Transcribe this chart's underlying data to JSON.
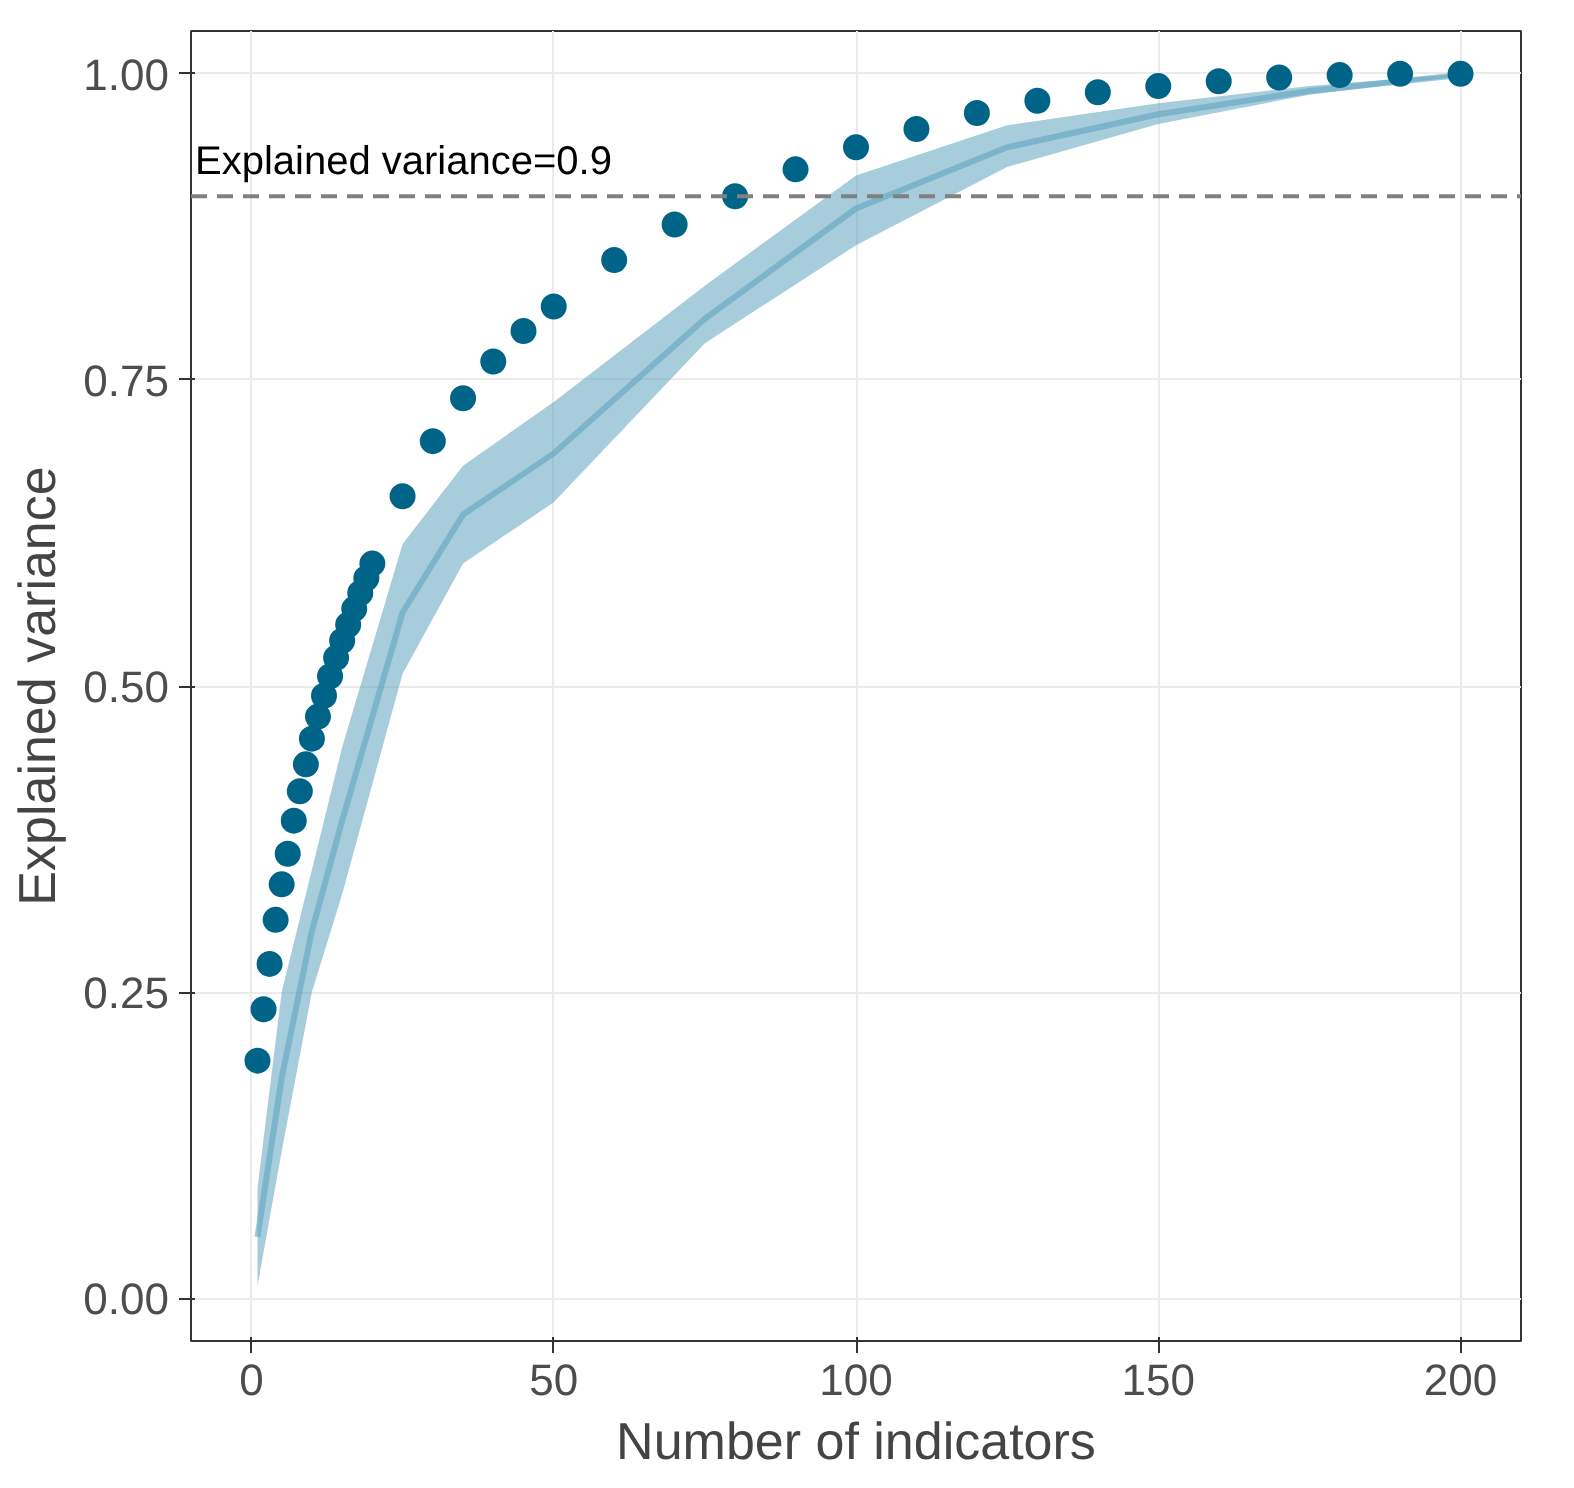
{
  "chart_data": {
    "type": "scatter",
    "xlabel": "Number of indicators",
    "ylabel": "Explained variance",
    "xlim": [
      -10,
      210
    ],
    "ylim": [
      -0.035,
      1.035
    ],
    "xticks": [
      0,
      50,
      100,
      150,
      200
    ],
    "yticks": [
      {
        "value": 0,
        "label": "0.00"
      },
      {
        "value": 0.25,
        "label": "0.25"
      },
      {
        "value": 0.5,
        "label": "0.50"
      },
      {
        "value": 0.75,
        "label": "0.75"
      },
      {
        "value": 1,
        "label": "1.00"
      }
    ],
    "grid": true,
    "ref_lines": [
      {
        "axis": "y",
        "value": 0.9,
        "label": "Explained variance=0.9",
        "color": "#808080",
        "line_style": "dashed"
      }
    ],
    "series": [
      {
        "type": "line",
        "color": "#5fa3c0",
        "x": [
          1,
          5,
          10,
          15,
          25,
          35,
          50,
          75,
          100,
          125,
          150,
          175,
          200
        ],
        "values": [
          0.05,
          0.18,
          0.3,
          0.39,
          0.56,
          0.64,
          0.69,
          0.8,
          0.89,
          0.94,
          0.967,
          0.986,
          0.999
        ],
        "lower": [
          0.01,
          0.12,
          0.25,
          0.33,
          0.51,
          0.6,
          0.65,
          0.78,
          0.86,
          0.924,
          0.959,
          0.983,
          0.998
        ],
        "upper": [
          0.09,
          0.25,
          0.35,
          0.45,
          0.616,
          0.68,
          0.732,
          0.827,
          0.917,
          0.958,
          0.976,
          0.99,
          1.0
        ]
      },
      {
        "marker": "circle",
        "color": "#006488",
        "x": [
          1,
          2,
          3,
          4,
          5,
          6,
          7,
          8,
          9,
          10,
          11,
          12,
          13,
          14,
          15,
          16,
          17,
          18,
          19,
          20,
          25,
          30,
          35,
          40,
          45,
          50,
          60,
          70,
          80,
          90,
          100,
          110,
          120,
          130,
          140,
          150,
          160,
          170,
          180,
          190,
          200
        ],
        "values": [
          0.194,
          0.236,
          0.273,
          0.309,
          0.338,
          0.363,
          0.39,
          0.414,
          0.436,
          0.457,
          0.475,
          0.492,
          0.508,
          0.523,
          0.537,
          0.55,
          0.563,
          0.576,
          0.588,
          0.6,
          0.655,
          0.7,
          0.735,
          0.765,
          0.79,
          0.81,
          0.848,
          0.877,
          0.9,
          0.922,
          0.94,
          0.955,
          0.968,
          0.978,
          0.985,
          0.99,
          0.994,
          0.997,
          0.999,
          1.0,
          1.0
        ]
      }
    ]
  }
}
